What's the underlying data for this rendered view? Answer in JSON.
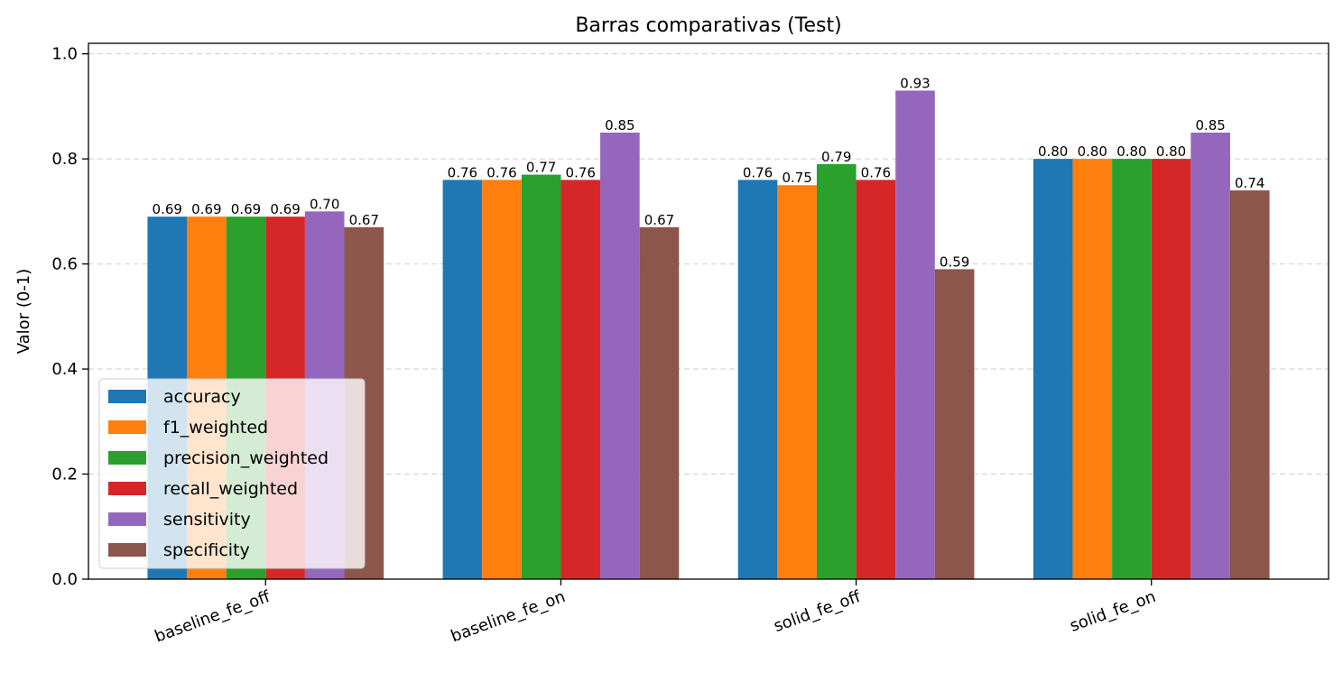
{
  "chart_data": {
    "type": "bar",
    "title": "Barras comparativas (Test)",
    "xlabel": "",
    "ylabel": "Valor (0-1)",
    "ylim": [
      0,
      1.02
    ],
    "yticks": [
      "0.0",
      "0.2",
      "0.4",
      "0.6",
      "0.8",
      "1.0"
    ],
    "grid": true,
    "legend_position": "lower-left",
    "categories": [
      "baseline_fe_off",
      "baseline_fe_on",
      "solid_fe_off",
      "solid_fe_on"
    ],
    "series": [
      {
        "name": "accuracy",
        "color": "#1f77b4",
        "values": [
          0.69,
          0.76,
          0.76,
          0.8
        ],
        "labels": [
          "0.69",
          "0.76",
          "0.76",
          "0.80"
        ]
      },
      {
        "name": "f1_weighted",
        "color": "#ff7f0e",
        "values": [
          0.69,
          0.76,
          0.75,
          0.8
        ],
        "labels": [
          "0.69",
          "0.76",
          "0.75",
          "0.80"
        ]
      },
      {
        "name": "precision_weighted",
        "color": "#2ca02c",
        "values": [
          0.69,
          0.77,
          0.79,
          0.8
        ],
        "labels": [
          "0.69",
          "0.77",
          "0.79",
          "0.80"
        ]
      },
      {
        "name": "recall_weighted",
        "color": "#d62728",
        "values": [
          0.69,
          0.76,
          0.76,
          0.8
        ],
        "labels": [
          "0.69",
          "0.76",
          "0.76",
          "0.80"
        ]
      },
      {
        "name": "sensitivity",
        "color": "#9467bd",
        "values": [
          0.7,
          0.85,
          0.93,
          0.85
        ],
        "labels": [
          "0.70",
          "0.85",
          "0.93",
          "0.85"
        ]
      },
      {
        "name": "specificity",
        "color": "#8c564b",
        "values": [
          0.67,
          0.67,
          0.59,
          0.74
        ],
        "labels": [
          "0.67",
          "0.67",
          "0.59",
          "0.74"
        ]
      }
    ]
  }
}
